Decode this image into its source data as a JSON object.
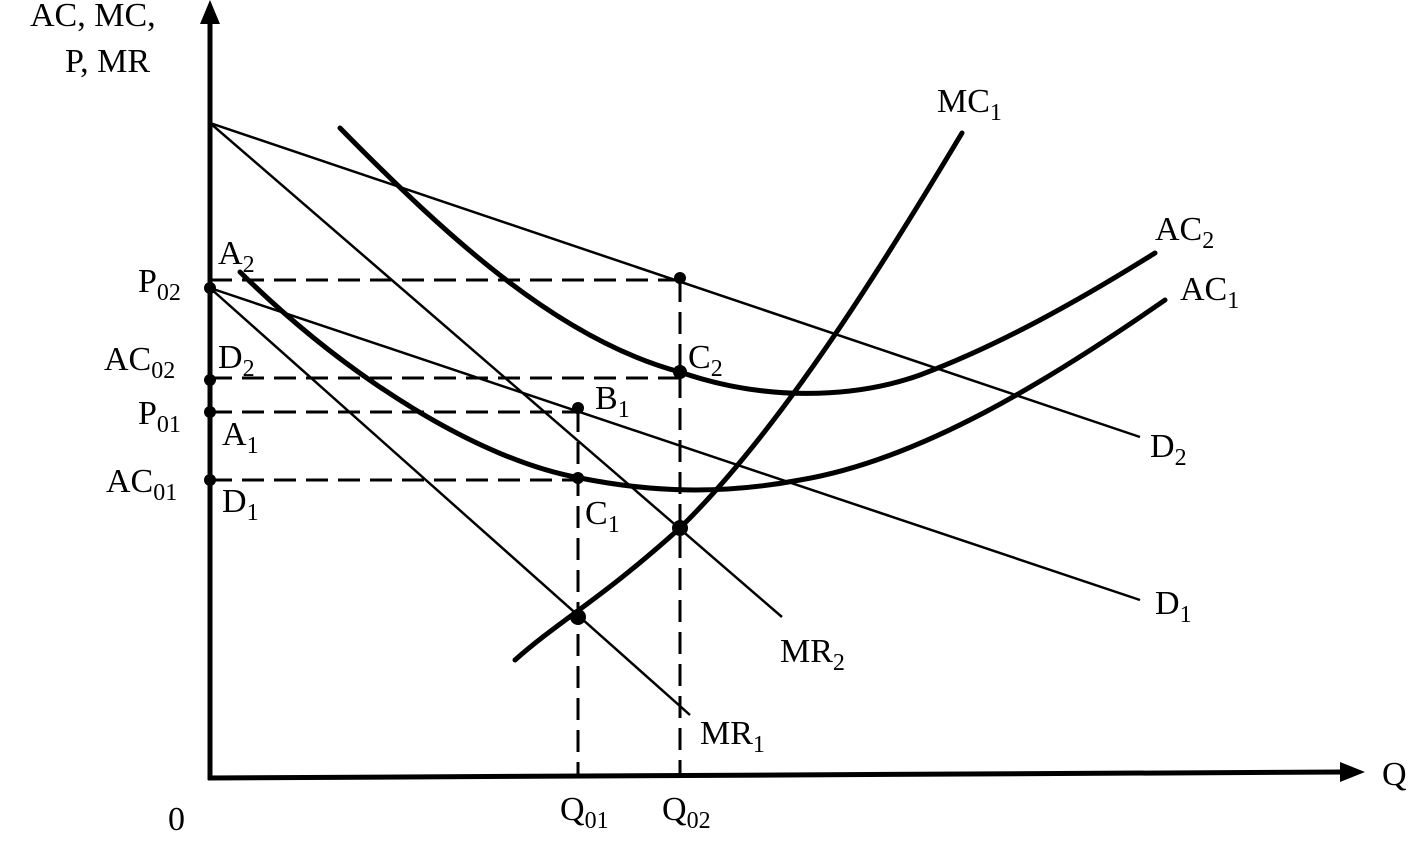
{
  "axes": {
    "y_label": [
      "AC, MC,",
      "P, MR"
    ],
    "x_label": "Q",
    "origin": "0"
  },
  "labels": [
    {
      "text": "MC",
      "sub": "1"
    },
    {
      "text": "AC",
      "sub": "2"
    },
    {
      "text": "AC",
      "sub": "1"
    },
    {
      "text": "D",
      "sub": "2"
    },
    {
      "text": "D",
      "sub": "1"
    },
    {
      "text": "MR",
      "sub": "2"
    },
    {
      "text": "MR",
      "sub": "1"
    },
    {
      "text": "C",
      "sub": "2"
    },
    {
      "text": "B",
      "sub": "1"
    },
    {
      "text": "C",
      "sub": "1"
    },
    {
      "text": "A",
      "sub": "2"
    },
    {
      "text": "D",
      "sub": "2"
    },
    {
      "text": "A",
      "sub": "1"
    },
    {
      "text": "D",
      "sub": "1"
    },
    {
      "text": "P",
      "sub": "02"
    },
    {
      "text": "AC",
      "sub": "02"
    },
    {
      "text": "P",
      "sub": "01"
    },
    {
      "text": "AC",
      "sub": "01"
    },
    {
      "text": "Q",
      "sub": "01"
    },
    {
      "text": "Q",
      "sub": "02"
    }
  ]
}
